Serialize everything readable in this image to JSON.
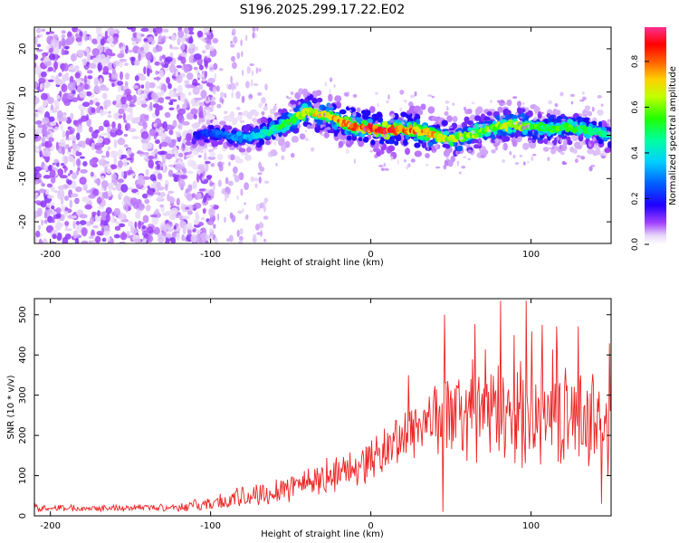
{
  "figure": {
    "title": "S196.2025.299.17.22.E02"
  },
  "chart_data": [
    {
      "type": "heatmap",
      "title": "S196.2025.299.17.22.E02",
      "xlabel": "Height of straight line (km)",
      "ylabel": "Frequency (Hz)",
      "xlim": [
        -210,
        150
      ],
      "ylim": [
        -25,
        25
      ],
      "xticks": [
        -200,
        -100,
        0,
        100
      ],
      "yticks": [
        -20,
        -10,
        0,
        10,
        20
      ],
      "colorbar": {
        "label": "Normalized spectral amplitude",
        "range": [
          0,
          0.95
        ],
        "ticks": [
          "0.0",
          "0.2",
          "0.4",
          "0.6",
          "0.8"
        ],
        "tick_values": [
          0.0,
          0.2,
          0.4,
          0.6,
          0.8
        ],
        "colors": [
          "#e8e0f8",
          "#8000ff",
          "#0000ff",
          "#00c0ff",
          "#00ff80",
          "#40ff00",
          "#c0ff00",
          "#ffe000",
          "#ff6000",
          "#ff0000",
          "#ff0080",
          "#ff40c0"
        ]
      },
      "noise_region_km": [
        -210,
        -105
      ],
      "ridge": {
        "x_km": [
          -110,
          -100,
          -90,
          -80,
          -70,
          -60,
          -50,
          -40,
          -30,
          -20,
          -10,
          0,
          10,
          20,
          30,
          40,
          50,
          60,
          70,
          80,
          90,
          100,
          110,
          120,
          130,
          140,
          150
        ],
        "freq_hz": [
          0,
          0.3,
          0,
          -0.5,
          0,
          1.5,
          3.5,
          5.5,
          5,
          3.5,
          2,
          1.5,
          1,
          1.5,
          1,
          0,
          -1,
          0,
          1,
          2,
          2.5,
          2,
          1.5,
          2,
          1.5,
          1,
          0
        ],
        "peak_amplitude": [
          0.2,
          0.25,
          0.3,
          0.35,
          0.4,
          0.5,
          0.6,
          0.7,
          0.75,
          0.8,
          0.85,
          0.9,
          0.95,
          0.85,
          0.8,
          0.75,
          0.7,
          0.65,
          0.6,
          0.65,
          0.7,
          0.6,
          0.55,
          0.6,
          0.55,
          0.5,
          0.45
        ]
      }
    },
    {
      "type": "line",
      "xlabel": "Height of straight line (km)",
      "ylabel": "SNR (10 * v/v)",
      "xlim": [
        -210,
        150
      ],
      "ylim": [
        0,
        540
      ],
      "xticks": [
        -200,
        -100,
        0,
        100
      ],
      "yticks": [
        0,
        100,
        200,
        300,
        400,
        500
      ],
      "series": [
        {
          "name": "SNR",
          "color": "#ee2222",
          "envelope_x": [
            -210,
            -150,
            -120,
            -100,
            -80,
            -60,
            -40,
            -20,
            0,
            10,
            20,
            30,
            40,
            50,
            60,
            80,
            100,
            120,
            140,
            150
          ],
          "envelope_mean": [
            20,
            20,
            22,
            30,
            45,
            65,
            85,
            105,
            140,
            165,
            200,
            230,
            245,
            250,
            250,
            255,
            250,
            245,
            245,
            240
          ],
          "envelope_spread": [
            8,
            8,
            10,
            18,
            28,
            35,
            40,
            45,
            50,
            60,
            70,
            80,
            90,
            100,
            110,
            120,
            120,
            115,
            110,
            110
          ],
          "spikes": [
            {
              "x": 46,
              "y": 500
            },
            {
              "x": 81,
              "y": 535
            },
            {
              "x": 97,
              "y": 535
            },
            {
              "x": 45,
              "y": 10
            },
            {
              "x": 144,
              "y": 30
            },
            {
              "x": 148,
              "y": 100
            }
          ]
        }
      ]
    }
  ]
}
